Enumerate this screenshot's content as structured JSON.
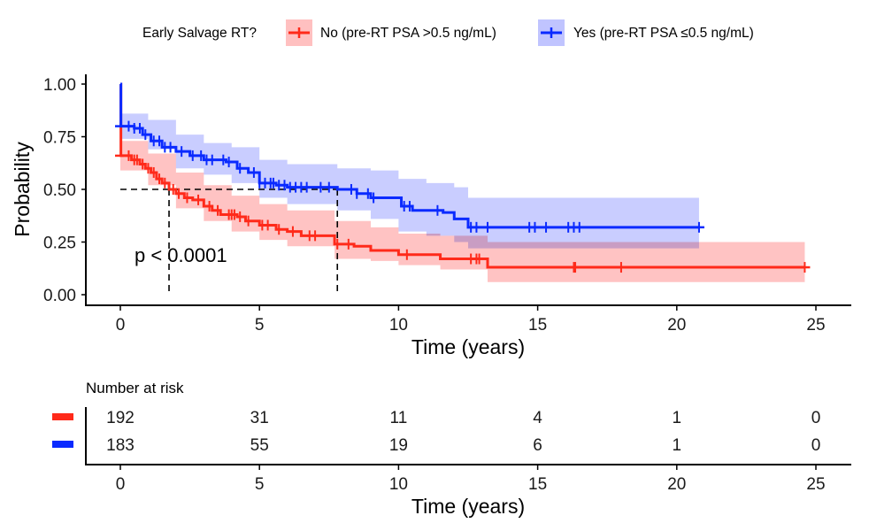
{
  "chart_data": [
    {
      "type": "line",
      "subtype": "kaplan-meier",
      "title": "",
      "xlabel": "Time (years)",
      "ylabel": "Probability",
      "xlim": [
        0,
        25
      ],
      "ylim": [
        0,
        1
      ],
      "x_ticks": [
        "0",
        "5",
        "10",
        "15",
        "20",
        "25"
      ],
      "y_ticks": [
        "0.00",
        "0.25",
        "0.50",
        "0.75",
        "1.00"
      ],
      "grid": false,
      "legend": {
        "title": "Early Salvage RT?",
        "placement": "top",
        "entries": [
          {
            "label": "No (pre-RT PSA >0.5 ng/mL)",
            "color": "#ff2a1a",
            "fill": "#ffc0c0"
          },
          {
            "label": "Yes (pre-RT PSA ≤0.5 ng/mL)",
            "color": "#0a2aff",
            "fill": "#c0c4ff"
          }
        ]
      },
      "annotation": "p < 0.0001",
      "median_lines": [
        {
          "series": "No",
          "x": 1.75,
          "y": 0.5
        },
        {
          "series": "Yes",
          "x": 7.8,
          "y": 0.5
        }
      ],
      "series": [
        {
          "name": "No (pre-RT PSA >0.5 ng/mL)",
          "color": "#ff2a1a",
          "ci_color": "#ffc0c0",
          "steps": [
            [
              0,
              1.0
            ],
            [
              0.02,
              0.66
            ],
            [
              0.4,
              0.64
            ],
            [
              0.7,
              0.62
            ],
            [
              0.9,
              0.6
            ],
            [
              1.1,
              0.58
            ],
            [
              1.3,
              0.55
            ],
            [
              1.5,
              0.53
            ],
            [
              1.75,
              0.5
            ],
            [
              2.0,
              0.48
            ],
            [
              2.3,
              0.46
            ],
            [
              2.6,
              0.45
            ],
            [
              3.0,
              0.42
            ],
            [
              3.3,
              0.4
            ],
            [
              3.6,
              0.38
            ],
            [
              4.2,
              0.37
            ],
            [
              4.5,
              0.35
            ],
            [
              5.0,
              0.33
            ],
            [
              5.6,
              0.31
            ],
            [
              6.0,
              0.3
            ],
            [
              6.5,
              0.28
            ],
            [
              7.6,
              0.28
            ],
            [
              7.7,
              0.24
            ],
            [
              8.4,
              0.23
            ],
            [
              9.0,
              0.21
            ],
            [
              10.0,
              0.19
            ],
            [
              11.5,
              0.17
            ],
            [
              13.2,
              0.13
            ],
            [
              24.6,
              0.13
            ]
          ],
          "ci_upper": [
            [
              0,
              0.73
            ],
            [
              1,
              0.67
            ],
            [
              2,
              0.58
            ],
            [
              3,
              0.52
            ],
            [
              4,
              0.47
            ],
            [
              5,
              0.43
            ],
            [
              6,
              0.4
            ],
            [
              7.7,
              0.35
            ],
            [
              9,
              0.32
            ],
            [
              10,
              0.29
            ],
            [
              11.5,
              0.28
            ],
            [
              13.2,
              0.25
            ],
            [
              24.6,
              0.25
            ]
          ],
          "ci_lower": [
            [
              0,
              0.59
            ],
            [
              1,
              0.52
            ],
            [
              2,
              0.41
            ],
            [
              3,
              0.35
            ],
            [
              4,
              0.3
            ],
            [
              5,
              0.26
            ],
            [
              6,
              0.23
            ],
            [
              7.7,
              0.17
            ],
            [
              9,
              0.16
            ],
            [
              10,
              0.14
            ],
            [
              11.5,
              0.12
            ],
            [
              13.2,
              0.06
            ],
            [
              24.6,
              0.06
            ]
          ],
          "censor_times": [
            0.3,
            0.5,
            0.6,
            0.8,
            1.0,
            1.2,
            1.4,
            1.6,
            1.9,
            2.1,
            2.4,
            2.8,
            3.2,
            3.5,
            3.9,
            4.0,
            4.1,
            4.3,
            4.6,
            5.1,
            5.3,
            5.7,
            6.2,
            6.8,
            7.0,
            7.8,
            8.2,
            10.3,
            12.6,
            12.8,
            12.9,
            16.3,
            16.35,
            18.0,
            24.6
          ],
          "number_at_risk": [
            192,
            31,
            11,
            4,
            1,
            0
          ]
        },
        {
          "name": "Yes (pre-RT PSA ≤0.5 ng/mL)",
          "color": "#0a2aff",
          "ci_color": "#c0c4ff",
          "steps": [
            [
              0,
              1.0
            ],
            [
              0.02,
              0.8
            ],
            [
              0.5,
              0.79
            ],
            [
              0.8,
              0.76
            ],
            [
              1.1,
              0.73
            ],
            [
              1.5,
              0.7
            ],
            [
              2.0,
              0.68
            ],
            [
              2.5,
              0.66
            ],
            [
              3.0,
              0.64
            ],
            [
              3.8,
              0.63
            ],
            [
              4.2,
              0.6
            ],
            [
              4.6,
              0.58
            ],
            [
              5.0,
              0.53
            ],
            [
              5.6,
              0.52
            ],
            [
              6.0,
              0.51
            ],
            [
              7.8,
              0.5
            ],
            [
              8.5,
              0.48
            ],
            [
              9.0,
              0.46
            ],
            [
              10.1,
              0.42
            ],
            [
              10.5,
              0.4
            ],
            [
              11.6,
              0.39
            ],
            [
              12.0,
              0.36
            ],
            [
              12.5,
              0.32
            ],
            [
              20.8,
              0.32
            ]
          ],
          "ci_upper": [
            [
              0,
              0.86
            ],
            [
              1,
              0.83
            ],
            [
              2,
              0.76
            ],
            [
              3,
              0.72
            ],
            [
              4,
              0.7
            ],
            [
              5,
              0.64
            ],
            [
              6,
              0.62
            ],
            [
              7.8,
              0.6
            ],
            [
              9,
              0.59
            ],
            [
              10,
              0.55
            ],
            [
              11,
              0.53
            ],
            [
              12,
              0.51
            ],
            [
              12.5,
              0.46
            ],
            [
              20.8,
              0.46
            ]
          ],
          "ci_lower": [
            [
              0,
              0.74
            ],
            [
              1,
              0.69
            ],
            [
              2,
              0.6
            ],
            [
              3,
              0.57
            ],
            [
              4,
              0.53
            ],
            [
              5,
              0.46
            ],
            [
              6,
              0.43
            ],
            [
              7.8,
              0.4
            ],
            [
              9,
              0.36
            ],
            [
              10,
              0.3
            ],
            [
              11,
              0.28
            ],
            [
              12,
              0.25
            ],
            [
              12.5,
              0.22
            ],
            [
              20.8,
              0.22
            ]
          ],
          "censor_times": [
            0.3,
            0.5,
            0.7,
            0.9,
            1.2,
            1.4,
            1.6,
            1.8,
            2.2,
            2.6,
            2.9,
            3.1,
            3.3,
            3.7,
            3.9,
            4.3,
            4.8,
            5.0,
            5.2,
            5.4,
            5.5,
            5.7,
            5.9,
            6.1,
            6.3,
            6.5,
            6.7,
            7.2,
            7.5,
            8.3,
            8.5,
            8.9,
            9.1,
            10.2,
            10.4,
            11.4,
            12.6,
            12.8,
            13.2,
            14.7,
            14.9,
            15.3,
            16.1,
            16.3,
            16.5,
            20.8
          ],
          "number_at_risk": [
            183,
            55,
            19,
            6,
            1,
            0
          ]
        }
      ]
    },
    {
      "type": "table",
      "title": "Number at risk",
      "xlabel": "Time (years)",
      "x_ticks": [
        "0",
        "5",
        "10",
        "15",
        "20",
        "25"
      ],
      "rows": [
        {
          "color": "#ff2a1a",
          "values": [
            "192",
            "31",
            "11",
            "4",
            "1",
            "0"
          ]
        },
        {
          "color": "#0a2aff",
          "values": [
            "183",
            "55",
            "19",
            "6",
            "1",
            "0"
          ]
        }
      ]
    }
  ]
}
